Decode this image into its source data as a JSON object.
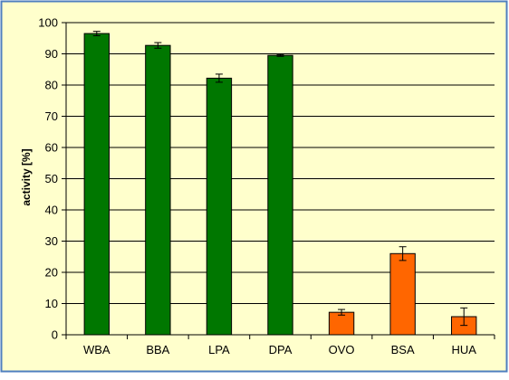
{
  "chart_data": {
    "type": "bar",
    "title": "",
    "xlabel": "",
    "ylabel": "activity [%]",
    "ylim": [
      0,
      100
    ],
    "yticks": [
      0,
      10,
      20,
      30,
      40,
      50,
      60,
      70,
      80,
      90,
      100
    ],
    "grid": true,
    "categories": [
      "WBA",
      "BBA",
      "LPA",
      "DPA",
      "OVO",
      "BSA",
      "HUA"
    ],
    "values": [
      96.5,
      92.7,
      82.2,
      89.5,
      7.2,
      26.0,
      5.8
    ],
    "errors": [
      0.7,
      0.9,
      1.3,
      0.3,
      0.9,
      2.2,
      2.8
    ],
    "bar_colors": [
      "#007700",
      "#007700",
      "#007700",
      "#007700",
      "#FF6600",
      "#FF6600",
      "#FF6600"
    ],
    "plot_background": "#FFFFCC",
    "frame_color": "#4F7FBF"
  }
}
